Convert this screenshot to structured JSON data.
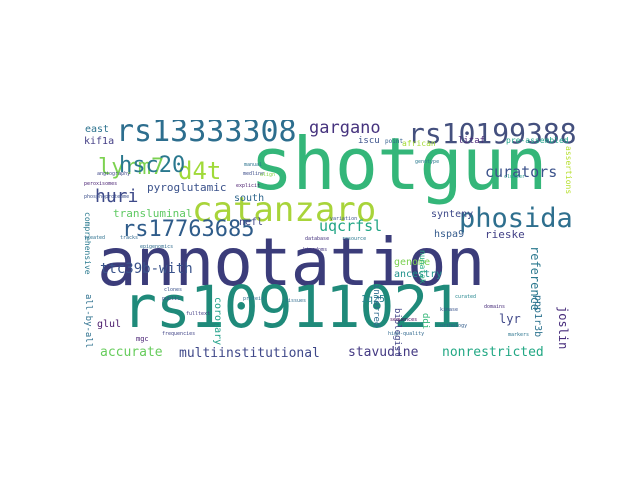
{
  "words": [
    {
      "text": "annotation",
      "color": "#3b3c7a"
    },
    {
      "text": "shotgun",
      "color": "#34b679"
    },
    {
      "text": "rs10911021",
      "color": "#1f8a7a"
    },
    {
      "text": "catanzaro",
      "color": "#a8d43a"
    },
    {
      "text": "rs13333308",
      "color": "#2d6e8e"
    },
    {
      "text": "rs10199388",
      "color": "#44507e"
    },
    {
      "text": "rs17763685",
      "color": "#2f5c8a"
    },
    {
      "text": "phosida",
      "color": "#2e6f8e"
    },
    {
      "text": "lyrm7",
      "color": "#7cd250"
    },
    {
      "text": "d4t",
      "color": "#a0da39"
    },
    {
      "text": "hsc20",
      "color": "#2a788e"
    },
    {
      "text": "gargano",
      "color": "#46337e"
    },
    {
      "text": "huri",
      "color": "#3e4a89"
    },
    {
      "text": "uqcrfsl",
      "color": "#21a585"
    },
    {
      "text": "curators",
      "color": "#3b528b"
    },
    {
      "text": "ttc39b-with",
      "color": "#3a538b"
    },
    {
      "text": "accurate",
      "color": "#67cc5c"
    },
    {
      "text": "multiinstitutional",
      "color": "#3f4889"
    },
    {
      "text": "stavudine",
      "color": "#443a83"
    },
    {
      "text": "nonrestricted",
      "color": "#22a884"
    },
    {
      "text": "pyroglutamic",
      "color": "#3b528b"
    },
    {
      "text": "transluminal",
      "color": "#5ec962"
    },
    {
      "text": "south",
      "color": "#31688e"
    },
    {
      "text": "synteny",
      "color": "#3e4989"
    },
    {
      "text": "nefl",
      "color": "#404688"
    },
    {
      "text": "hspa9",
      "color": "#365c8d"
    },
    {
      "text": "genome",
      "color": "#7ad151"
    },
    {
      "text": "ancestry",
      "color": "#20928c"
    },
    {
      "text": "rieske",
      "color": "#424086"
    },
    {
      "text": "reference",
      "color": "#2a788e"
    },
    {
      "text": "joslin",
      "color": "#472d7b"
    },
    {
      "text": "lyr",
      "color": "#3f4788"
    },
    {
      "text": "ppp1r3b",
      "color": "#2c728e"
    },
    {
      "text": "1q25",
      "color": "#26828e"
    },
    {
      "text": "glul",
      "color": "#48186a"
    },
    {
      "text": "coronary",
      "color": "#1fa088"
    },
    {
      "text": "inferred",
      "color": "#2f6b8e"
    },
    {
      "text": "ddi",
      "color": "#35b779"
    },
    {
      "text": "biologist",
      "color": "#414487"
    },
    {
      "text": "all-by-all",
      "color": "#2d708e"
    },
    {
      "text": "comprehensive",
      "color": "#29798e"
    },
    {
      "text": "kif1a",
      "color": "#433e85"
    },
    {
      "text": "east",
      "color": "#2c728e"
    },
    {
      "text": "iscu",
      "color": "#3b528b"
    },
    {
      "text": "litaf",
      "color": "#482878"
    },
    {
      "text": "african",
      "color": "#a5db36"
    },
    {
      "text": "assertions",
      "color": "#b5de2b"
    },
    {
      "text": "pre-assembled",
      "color": "#1fa188"
    },
    {
      "text": "nunatak",
      "color": "#26ad81"
    },
    {
      "text": "point",
      "color": "#35608d"
    },
    {
      "text": "mgc",
      "color": "#482173"
    },
    {
      "text": "genotype",
      "color": "#29798e"
    },
    {
      "text": "variation",
      "color": "#3b528b"
    },
    {
      "text": "database",
      "color": "#46337e"
    },
    {
      "text": "resource",
      "color": "#2a788e"
    },
    {
      "text": "sequences",
      "color": "#440154"
    },
    {
      "text": "high-quality",
      "color": "#31688e"
    },
    {
      "text": "frequencies",
      "color": "#414487"
    },
    {
      "text": "public",
      "color": "#3e4a89"
    },
    {
      "text": "clones",
      "color": "#3b528b"
    },
    {
      "text": "manual",
      "color": "#2c728e"
    },
    {
      "text": "orthology",
      "color": "#355f8d"
    },
    {
      "text": "domains",
      "color": "#472c7a"
    },
    {
      "text": "tissues",
      "color": "#2f6c8e"
    },
    {
      "text": "medline",
      "color": "#3d4d8a"
    },
    {
      "text": "curated",
      "color": "#24868e"
    },
    {
      "text": "protein",
      "color": "#2e6e8e"
    },
    {
      "text": "kingdoms",
      "color": "#453781"
    },
    {
      "text": "angiography",
      "color": "#3f4788"
    },
    {
      "text": "peroxisomes",
      "color": "#482071"
    },
    {
      "text": "phosphoproteome",
      "color": "#3c4f8a"
    },
    {
      "text": "fulltext",
      "color": "#433e85"
    },
    {
      "text": "cluster",
      "color": "#1e9b8a"
    },
    {
      "text": "kinase",
      "color": "#3a548c"
    },
    {
      "text": "markers",
      "color": "#2b748e"
    },
    {
      "text": "align",
      "color": "#8bd646"
    },
    {
      "text": "tracks",
      "color": "#31688e"
    },
    {
      "text": "epigenomics",
      "color": "#2f6b8e"
    },
    {
      "text": "explicit",
      "color": "#481a6c"
    },
    {
      "text": "treated",
      "color": "#2d708e"
    }
  ]
}
